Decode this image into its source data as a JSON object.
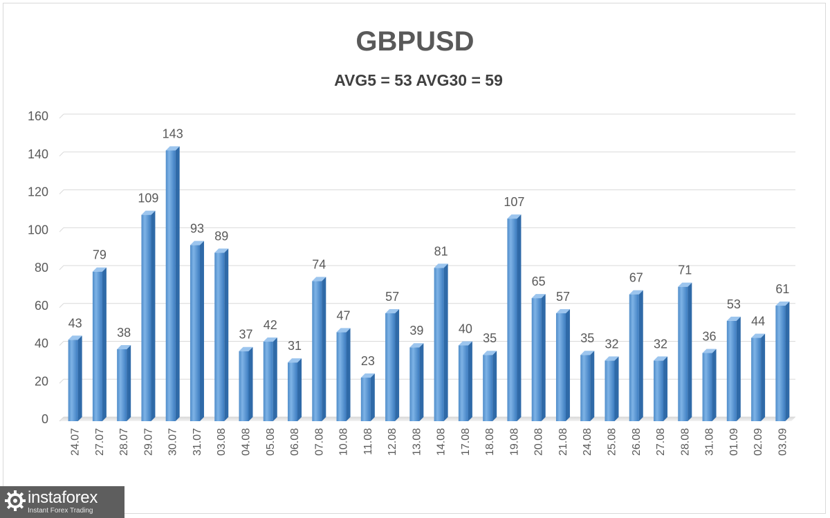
{
  "chart_data": {
    "type": "bar",
    "title": "GBPUSD",
    "subtitle": "AVG5 = 53 AVG30 = 59",
    "categories": [
      "24.07",
      "27.07",
      "28.07",
      "29.07",
      "30.07",
      "31.07",
      "03.08",
      "04.08",
      "05.08",
      "06.08",
      "07.08",
      "10.08",
      "11.08",
      "12.08",
      "13.08",
      "14.08",
      "17.08",
      "18.08",
      "19.08",
      "20.08",
      "21.08",
      "24.08",
      "25.08",
      "26.08",
      "27.08",
      "28.08",
      "31.08",
      "01.09",
      "02.09",
      "03.09"
    ],
    "values": [
      43,
      79,
      38,
      109,
      143,
      93,
      89,
      37,
      42,
      31,
      74,
      47,
      23,
      57,
      39,
      81,
      40,
      35,
      107,
      65,
      57,
      35,
      32,
      67,
      32,
      71,
      36,
      53,
      44,
      61
    ],
    "yticks": [
      "0",
      "20",
      "40",
      "60",
      "80",
      "100",
      "120",
      "140",
      "160"
    ],
    "ylim": [
      0,
      160
    ],
    "grid": true,
    "data_labels": true,
    "bar_color": "#5b9bd5",
    "legend": "none"
  },
  "watermark": {
    "brand": "instaforex",
    "tagline": "Instant Forex Trading"
  }
}
